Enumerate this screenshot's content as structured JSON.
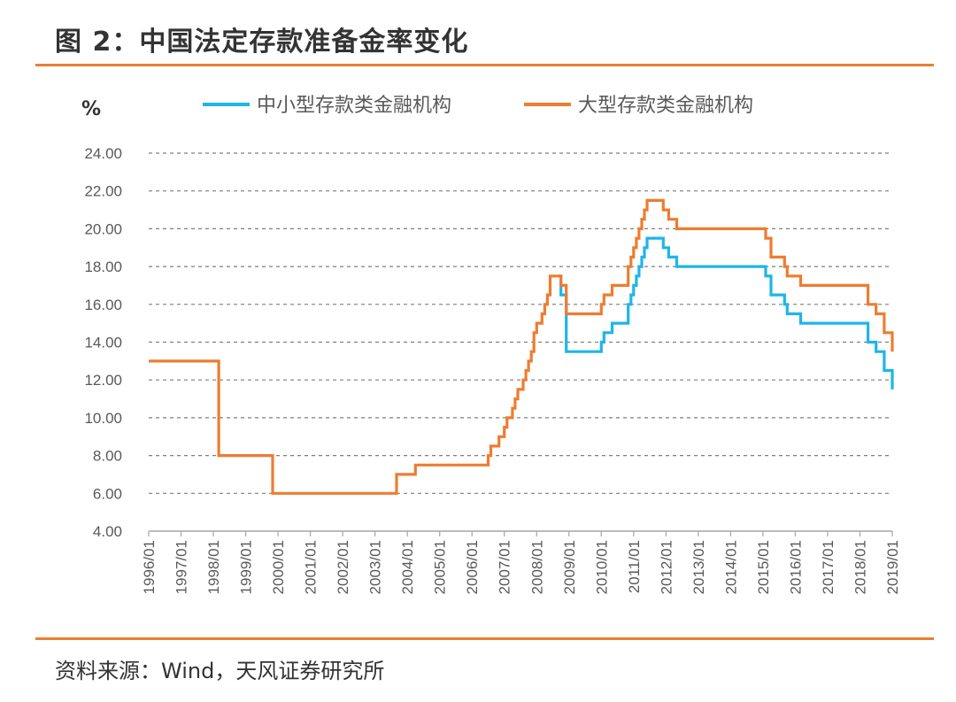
{
  "figure": {
    "title": "图 2：中国法定存款准备金率变化",
    "source": "资料来源：Wind，天风证券研究所"
  },
  "colors": {
    "accent": "#ed7d31",
    "small_series": "#1fb5e8",
    "large_series": "#ed7d31",
    "grid": "#7f7f7f"
  },
  "chart_data": {
    "type": "line",
    "title": "图 2：中国法定存款准备金率变化",
    "ylabel": "%",
    "xlabel": "",
    "ylim": [
      4,
      24
    ],
    "yticks": [
      "4.00",
      "6.00",
      "8.00",
      "10.00",
      "12.00",
      "14.00",
      "16.00",
      "18.00",
      "20.00",
      "22.00",
      "24.00"
    ],
    "xlim": [
      "1996/01",
      "2019/01"
    ],
    "xticks": [
      "1996/01",
      "1997/01",
      "1998/01",
      "1999/01",
      "2000/01",
      "2001/01",
      "2002/01",
      "2003/01",
      "2004/01",
      "2005/01",
      "2006/01",
      "2007/01",
      "2008/01",
      "2009/01",
      "2010/01",
      "2011/01",
      "2012/01",
      "2013/01",
      "2014/01",
      "2015/01",
      "2016/01",
      "2017/01",
      "2018/01",
      "2019/01"
    ],
    "grid": "horizontal dashed",
    "legend_position": "top",
    "series": [
      {
        "name": "中小型存款类金融机构",
        "color": "#1fb5e8",
        "points": [
          [
            "2008/09",
            17.5
          ],
          [
            "2008/10",
            16.5
          ],
          [
            "2008/12",
            14.0
          ],
          [
            "2008/12",
            13.5
          ],
          [
            "2010/01",
            14.0
          ],
          [
            "2010/02",
            14.5
          ],
          [
            "2010/05",
            15.0
          ],
          [
            "2010/11",
            15.5
          ],
          [
            "2010/11",
            16.0
          ],
          [
            "2010/12",
            16.5
          ],
          [
            "2011/01",
            17.0
          ],
          [
            "2011/02",
            17.5
          ],
          [
            "2011/03",
            18.0
          ],
          [
            "2011/04",
            18.5
          ],
          [
            "2011/05",
            19.0
          ],
          [
            "2011/06",
            19.5
          ],
          [
            "2011/12",
            19.0
          ],
          [
            "2012/02",
            18.5
          ],
          [
            "2012/05",
            18.0
          ],
          [
            "2015/02",
            17.5
          ],
          [
            "2015/04",
            16.5
          ],
          [
            "2015/09",
            16.0
          ],
          [
            "2015/10",
            15.5
          ],
          [
            "2016/03",
            15.0
          ],
          [
            "2018/04",
            14.0
          ],
          [
            "2018/07",
            13.5
          ],
          [
            "2018/10",
            12.5
          ],
          [
            "2019/01",
            11.5
          ]
        ]
      },
      {
        "name": "大型存款类金融机构",
        "color": "#ed7d31",
        "points": [
          [
            "1996/01",
            13.0
          ],
          [
            "1998/03",
            8.0
          ],
          [
            "1999/11",
            6.0
          ],
          [
            "2003/09",
            7.0
          ],
          [
            "2004/04",
            7.5
          ],
          [
            "2006/07",
            8.0
          ],
          [
            "2006/08",
            8.5
          ],
          [
            "2006/11",
            9.0
          ],
          [
            "2007/01",
            9.5
          ],
          [
            "2007/02",
            10.0
          ],
          [
            "2007/04",
            10.5
          ],
          [
            "2007/05",
            11.0
          ],
          [
            "2007/06",
            11.5
          ],
          [
            "2007/08",
            12.0
          ],
          [
            "2007/09",
            12.5
          ],
          [
            "2007/10",
            13.0
          ],
          [
            "2007/11",
            13.5
          ],
          [
            "2007/12",
            14.5
          ],
          [
            "2008/01",
            15.0
          ],
          [
            "2008/03",
            15.5
          ],
          [
            "2008/04",
            16.0
          ],
          [
            "2008/05",
            16.5
          ],
          [
            "2008/06",
            17.5
          ],
          [
            "2008/10",
            17.0
          ],
          [
            "2008/12",
            16.0
          ],
          [
            "2008/12",
            15.5
          ],
          [
            "2010/01",
            16.0
          ],
          [
            "2010/02",
            16.5
          ],
          [
            "2010/05",
            17.0
          ],
          [
            "2010/11",
            17.5
          ],
          [
            "2010/11",
            18.0
          ],
          [
            "2010/12",
            18.5
          ],
          [
            "2011/01",
            19.0
          ],
          [
            "2011/02",
            19.5
          ],
          [
            "2011/03",
            20.0
          ],
          [
            "2011/04",
            20.5
          ],
          [
            "2011/05",
            21.0
          ],
          [
            "2011/06",
            21.5
          ],
          [
            "2011/12",
            21.0
          ],
          [
            "2012/02",
            20.5
          ],
          [
            "2012/05",
            20.0
          ],
          [
            "2015/02",
            19.5
          ],
          [
            "2015/04",
            18.5
          ],
          [
            "2015/09",
            18.0
          ],
          [
            "2015/10",
            17.5
          ],
          [
            "2016/03",
            17.0
          ],
          [
            "2018/04",
            16.0
          ],
          [
            "2018/07",
            15.5
          ],
          [
            "2018/10",
            14.5
          ],
          [
            "2019/01",
            13.5
          ]
        ]
      }
    ]
  }
}
